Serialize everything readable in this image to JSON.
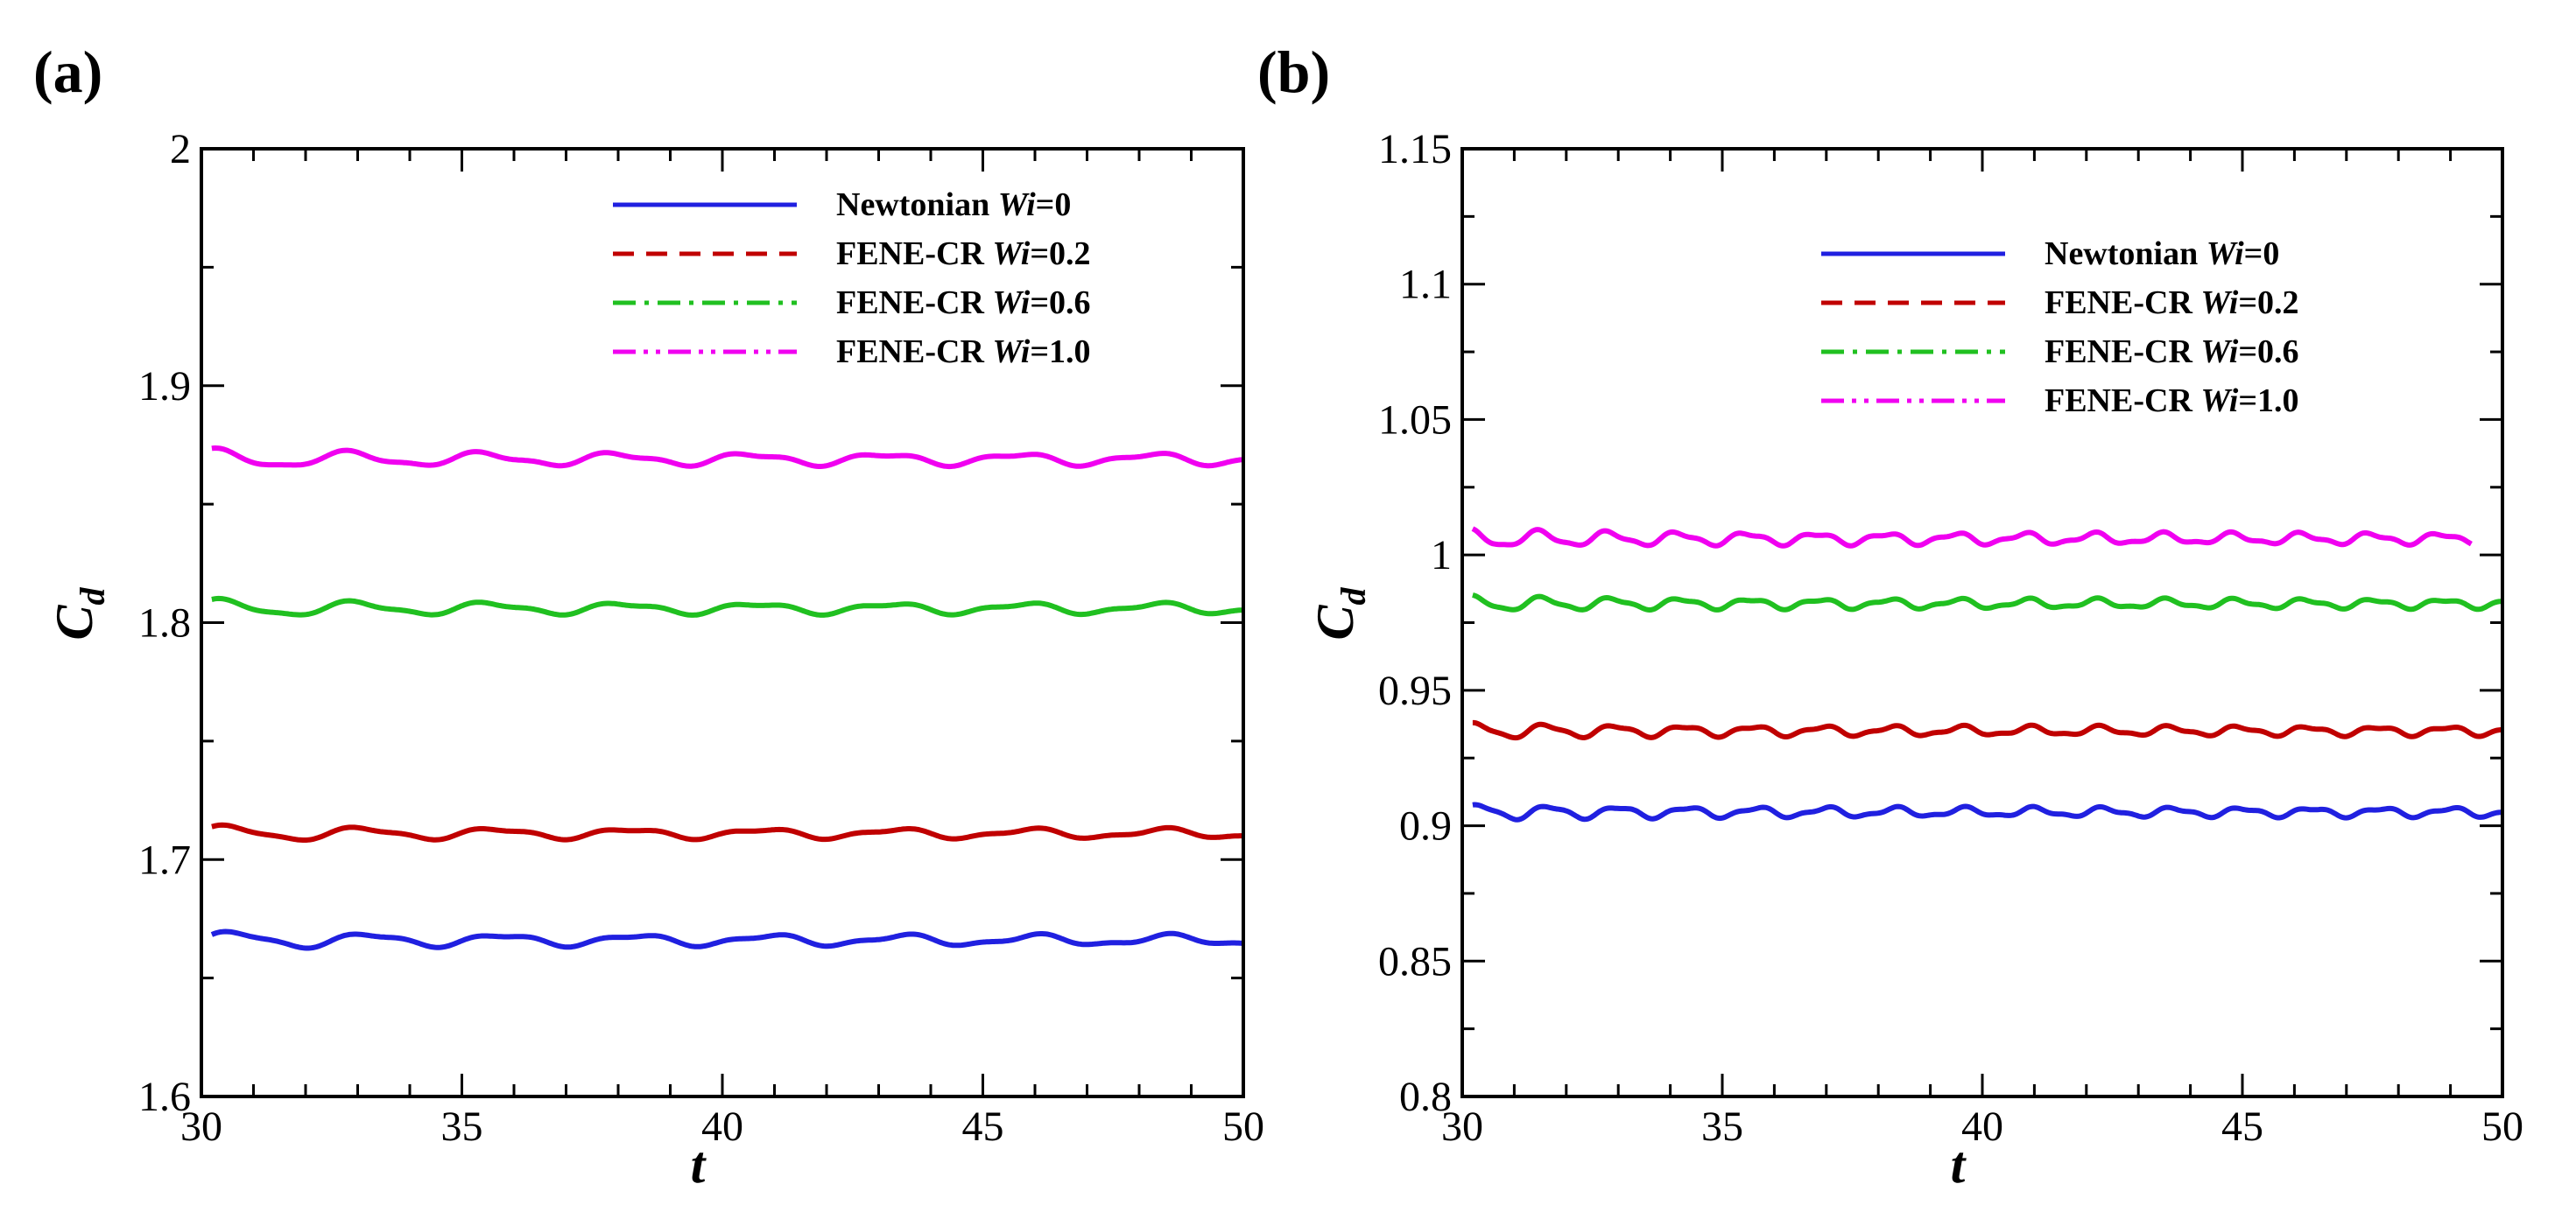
{
  "chart_data": [
    {
      "panel_label": "(a)",
      "type": "line",
      "xlabel": "t",
      "ylabel": "C",
      "ylabel_sub": "d",
      "xlim": [
        30,
        50
      ],
      "ylim": [
        1.6,
        2.0
      ],
      "xticks": [
        30,
        35,
        40,
        45,
        50
      ],
      "xtick_labels": [
        "30",
        "35",
        "40",
        "45",
        "50"
      ],
      "yticks": [
        1.6,
        1.7,
        1.8,
        1.9,
        2.0
      ],
      "ytick_labels": [
        "1.6",
        "1.7",
        "1.8",
        "1.9",
        "2"
      ],
      "grid": false,
      "legend_position": "top-right",
      "series": [
        {
          "name": "Newtonian",
          "wi_label": "Wi",
          "wi_value": "=0",
          "color": "#2020e0",
          "dash": "solid",
          "mean": 1.666,
          "amplitude": 0.002,
          "freq": 0.39
        },
        {
          "name": "FENE-CR",
          "wi_label": "Wi",
          "wi_value": "=0.2",
          "color": "#c00000",
          "dash": "dashed",
          "mean": 1.711,
          "amplitude": 0.0018,
          "freq": 0.39
        },
        {
          "name": "FENE-CR",
          "wi_label": "Wi",
          "wi_value": "=0.6",
          "color": "#20c020",
          "dash": "dashdot",
          "mean": 1.806,
          "amplitude": 0.002,
          "freq": 0.39
        },
        {
          "name": "FENE-CR",
          "wi_label": "Wi",
          "wi_value": "=1.0",
          "color": "#f000f0",
          "dash": "dashdotdot",
          "mean": 1.869,
          "amplitude": 0.0022,
          "freq": 0.39
        }
      ]
    },
    {
      "panel_label": "(b)",
      "type": "line",
      "xlabel": "t",
      "ylabel": "C",
      "ylabel_sub": "d",
      "xlim": [
        30,
        50
      ],
      "ylim": [
        0.8,
        1.15
      ],
      "xticks": [
        30,
        35,
        40,
        45,
        50
      ],
      "xtick_labels": [
        "30",
        "35",
        "40",
        "45",
        "50"
      ],
      "yticks": [
        0.8,
        0.85,
        0.9,
        0.95,
        1.0,
        1.05,
        1.1,
        1.15
      ],
      "ytick_labels": [
        "0.8",
        "0.85",
        "0.9",
        "0.95",
        "1",
        "1.05",
        "1.1",
        "1.15"
      ],
      "grid": false,
      "legend_position": "top-right",
      "series": [
        {
          "name": "Newtonian",
          "wi_label": "Wi",
          "wi_value": "=0",
          "color": "#2020e0",
          "dash": "solid",
          "mean": 0.905,
          "amplitude": 0.0015,
          "freq": 0.75
        },
        {
          "name": "FENE-CR",
          "wi_label": "Wi",
          "wi_value": "=0.2",
          "color": "#c00000",
          "dash": "dashed",
          "mean": 0.935,
          "amplitude": 0.0015,
          "freq": 0.75
        },
        {
          "name": "FENE-CR",
          "wi_label": "Wi",
          "wi_value": "=0.6",
          "color": "#20c020",
          "dash": "dashdot",
          "mean": 0.982,
          "amplitude": 0.0015,
          "freq": 0.75
        },
        {
          "name": "FENE-CR",
          "wi_label": "Wi",
          "wi_value": "=1.0",
          "color": "#f000f0",
          "dash": "dashdotdot",
          "mean": 1.006,
          "amplitude": 0.0018,
          "freq": 0.75
        }
      ]
    }
  ]
}
